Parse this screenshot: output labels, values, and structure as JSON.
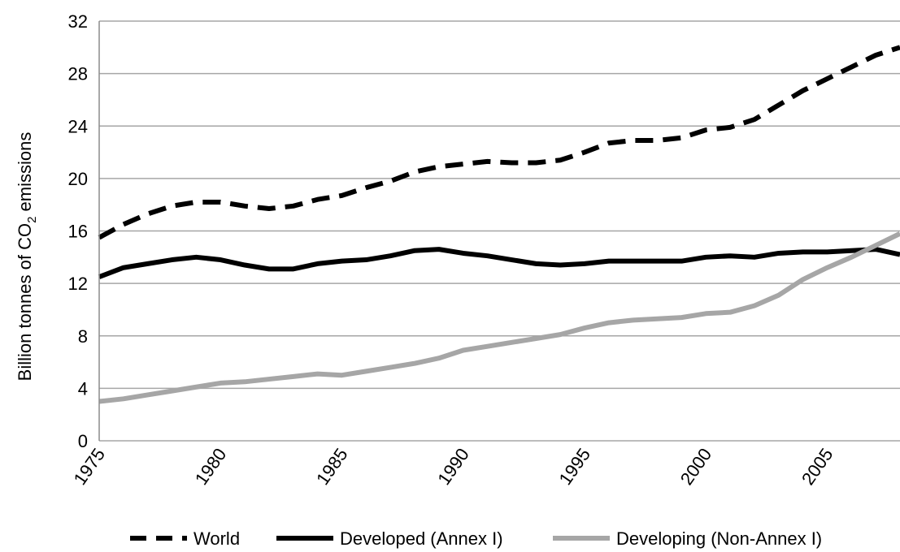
{
  "chart_data": {
    "type": "line",
    "title": "",
    "xlabel": "",
    "ylabel": "Billion tonnes of CO",
    "ylabel_sub": "2",
    "ylabel_suffix": " emissions",
    "xlim": [
      1975,
      2008
    ],
    "ylim": [
      0,
      32
    ],
    "grid": true,
    "legend_position": "bottom",
    "y_ticks": [
      "0",
      "4",
      "8",
      "12",
      "16",
      "20",
      "24",
      "28",
      "32"
    ],
    "x_ticks": [
      "1975",
      "1980",
      "1985",
      "1990",
      "1995",
      "2000",
      "2005"
    ],
    "x": [
      1975,
      1976,
      1977,
      1978,
      1979,
      1980,
      1981,
      1982,
      1983,
      1984,
      1985,
      1986,
      1987,
      1988,
      1989,
      1990,
      1991,
      1992,
      1993,
      1994,
      1995,
      1996,
      1997,
      1998,
      1999,
      2000,
      2001,
      2002,
      2003,
      2004,
      2005,
      2006,
      2007,
      2008
    ],
    "series": [
      {
        "name": "World",
        "style": "dashed",
        "color": "#000000",
        "values": [
          15.5,
          16.5,
          17.3,
          17.9,
          18.2,
          18.2,
          17.9,
          17.7,
          17.9,
          18.4,
          18.7,
          19.3,
          19.8,
          20.5,
          20.9,
          21.1,
          21.3,
          21.2,
          21.2,
          21.4,
          22.0,
          22.7,
          22.9,
          22.9,
          23.1,
          23.7,
          23.9,
          24.5,
          25.6,
          26.7,
          27.6,
          28.5,
          29.4,
          30.0
        ]
      },
      {
        "name": "Developed (Annex I)",
        "style": "solid",
        "color": "#000000",
        "values": [
          12.5,
          13.2,
          13.5,
          13.8,
          14.0,
          13.8,
          13.4,
          13.1,
          13.1,
          13.5,
          13.7,
          13.8,
          14.1,
          14.5,
          14.6,
          14.3,
          14.1,
          13.8,
          13.5,
          13.4,
          13.5,
          13.7,
          13.7,
          13.7,
          13.7,
          14.0,
          14.1,
          14.0,
          14.3,
          14.4,
          14.4,
          14.5,
          14.6,
          14.2
        ]
      },
      {
        "name": "Developing (Non-Annex I)",
        "style": "solid",
        "color": "#a6a6a6",
        "values": [
          3.0,
          3.2,
          3.5,
          3.8,
          4.1,
          4.4,
          4.5,
          4.7,
          4.9,
          5.1,
          5.0,
          5.3,
          5.6,
          5.9,
          6.3,
          6.9,
          7.2,
          7.5,
          7.8,
          8.1,
          8.6,
          9.0,
          9.2,
          9.3,
          9.4,
          9.7,
          9.8,
          10.3,
          11.1,
          12.3,
          13.2,
          14.0,
          14.9,
          15.8
        ]
      }
    ]
  }
}
